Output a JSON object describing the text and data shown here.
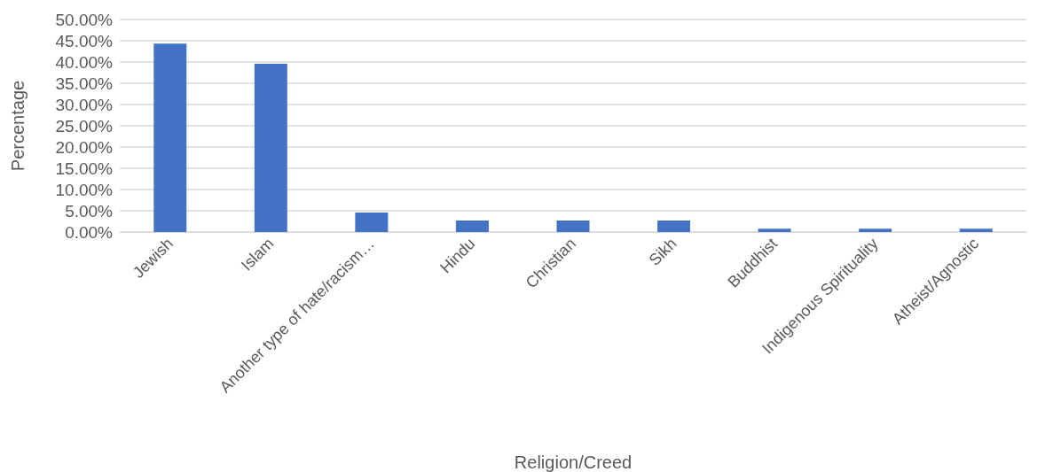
{
  "chart_data": {
    "type": "bar",
    "xlabel": "Religion/Creed",
    "ylabel": "Percentage",
    "categories": [
      "Jewish",
      "Islam",
      "Another type of hate/racism…",
      "Hindu",
      "Christian",
      "Sikh",
      "Buddhist",
      "Indigenous Spirituality",
      "Atheist/Agnostic"
    ],
    "values": [
      44.3,
      39.6,
      4.6,
      2.7,
      2.7,
      2.7,
      0.8,
      0.8,
      0.8
    ],
    "color": "#4472c4",
    "ylim": [
      0,
      50
    ],
    "yticks": [
      {
        "value": 0,
        "label": "0.00%"
      },
      {
        "value": 5,
        "label": "5.00%"
      },
      {
        "value": 10,
        "label": "10.00%"
      },
      {
        "value": 15,
        "label": "15.00%"
      },
      {
        "value": 20,
        "label": "20.00%"
      },
      {
        "value": 25,
        "label": "25.00%"
      },
      {
        "value": 30,
        "label": "30.00%"
      },
      {
        "value": 35,
        "label": "35.00%"
      },
      {
        "value": 40,
        "label": "40.00%"
      },
      {
        "value": 45,
        "label": "45.00%"
      },
      {
        "value": 50,
        "label": "50.00%"
      }
    ],
    "grid": "y"
  }
}
